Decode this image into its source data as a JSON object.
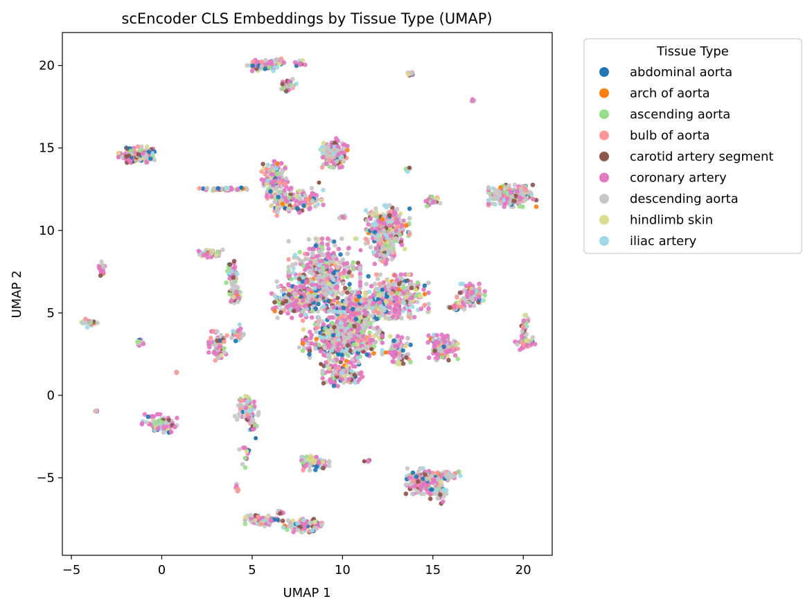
{
  "chart_data": {
    "type": "scatter",
    "title": "scEncoder CLS Embeddings by Tissue Type (UMAP)",
    "xlabel": "UMAP 1",
    "ylabel": "UMAP 2",
    "xlim": [
      -5.5,
      21.6
    ],
    "ylim": [
      -9.7,
      22.0
    ],
    "xticks": [
      -5,
      0,
      5,
      10,
      15,
      20
    ],
    "yticks": [
      -5,
      0,
      5,
      10,
      15,
      20
    ],
    "xtick_labels": [
      "−5",
      "0",
      "5",
      "10",
      "15",
      "20"
    ],
    "ytick_labels": [
      "−5",
      "0",
      "5",
      "10",
      "15",
      "20"
    ],
    "grid": false,
    "legend": {
      "title": "Tissue Type",
      "placement": "outside-upper-right"
    },
    "series": [
      {
        "name": "abdominal aorta",
        "color": "#1f77b4"
      },
      {
        "name": "arch of aorta",
        "color": "#ff7f0e"
      },
      {
        "name": "ascending aorta",
        "color": "#98df8a"
      },
      {
        "name": "bulb of aorta",
        "color": "#ff9896"
      },
      {
        "name": "carotid artery segment",
        "color": "#8c564b"
      },
      {
        "name": "coronary artery",
        "color": "#e377c2"
      },
      {
        "name": "descending aorta",
        "color": "#c7c7c7"
      },
      {
        "name": "hindlimb skin",
        "color": "#dbdb8d"
      },
      {
        "name": "iliac artery",
        "color": "#9edae5"
      }
    ],
    "clusters": [
      {
        "x": -1.4,
        "y": 14.6,
        "sx": 0.45,
        "sy": 0.22,
        "n": 160
      },
      {
        "x": 5.6,
        "y": 20.0,
        "sx": 0.4,
        "sy": 0.15,
        "n": 70
      },
      {
        "x": 6.4,
        "y": 20.2,
        "sx": 0.25,
        "sy": 0.1,
        "n": 30
      },
      {
        "x": 7.0,
        "y": 18.8,
        "sx": 0.2,
        "sy": 0.22,
        "n": 30
      },
      {
        "x": 7.6,
        "y": 20.1,
        "sx": 0.15,
        "sy": 0.1,
        "n": 15
      },
      {
        "x": 13.8,
        "y": 19.5,
        "sx": 0.08,
        "sy": 0.06,
        "n": 15
      },
      {
        "x": 17.2,
        "y": 17.9,
        "sx": 0.04,
        "sy": 0.04,
        "n": 6
      },
      {
        "x": 9.5,
        "y": 14.7,
        "sx": 0.35,
        "sy": 0.4,
        "n": 140
      },
      {
        "x": 6.3,
        "y": 13.2,
        "sx": 0.35,
        "sy": 0.45,
        "n": 100
      },
      {
        "x": 7.5,
        "y": 11.8,
        "sx": 0.65,
        "sy": 0.35,
        "n": 120
      },
      {
        "x": 6.4,
        "y": 12.0,
        "sx": 0.3,
        "sy": 0.5,
        "n": 60
      },
      {
        "x": 3.4,
        "y": 12.5,
        "sx": 0.6,
        "sy": 0.04,
        "n": 50
      },
      {
        "x": 12.5,
        "y": 10.2,
        "sx": 0.55,
        "sy": 0.6,
        "n": 300
      },
      {
        "x": 12.2,
        "y": 8.6,
        "sx": 0.3,
        "sy": 0.3,
        "n": 60
      },
      {
        "x": 13.6,
        "y": 13.7,
        "sx": 0.08,
        "sy": 0.06,
        "n": 8
      },
      {
        "x": 15.0,
        "y": 11.8,
        "sx": 0.18,
        "sy": 0.18,
        "n": 25
      },
      {
        "x": 19.4,
        "y": 12.1,
        "sx": 0.6,
        "sy": 0.3,
        "n": 220
      },
      {
        "x": 10.0,
        "y": 10.8,
        "sx": 0.08,
        "sy": 0.05,
        "n": 8
      },
      {
        "x": 2.6,
        "y": 8.6,
        "sx": 0.35,
        "sy": 0.15,
        "n": 40
      },
      {
        "x": -3.3,
        "y": 7.7,
        "sx": 0.1,
        "sy": 0.2,
        "n": 20
      },
      {
        "x": 3.9,
        "y": 7.3,
        "sx": 0.15,
        "sy": 0.4,
        "n": 45
      },
      {
        "x": 4.1,
        "y": 6.1,
        "sx": 0.15,
        "sy": 0.25,
        "n": 30
      },
      {
        "x": 9.0,
        "y": 7.3,
        "sx": 0.9,
        "sy": 1.0,
        "n": 450
      },
      {
        "x": 7.4,
        "y": 5.8,
        "sx": 0.6,
        "sy": 0.5,
        "n": 200
      },
      {
        "x": 10.8,
        "y": 5.2,
        "sx": 0.8,
        "sy": 0.5,
        "n": 220
      },
      {
        "x": 13.0,
        "y": 6.0,
        "sx": 0.8,
        "sy": 0.6,
        "n": 280
      },
      {
        "x": 10.0,
        "y": 3.4,
        "sx": 1.0,
        "sy": 0.6,
        "n": 450
      },
      {
        "x": 10.0,
        "y": 1.3,
        "sx": 0.5,
        "sy": 0.4,
        "n": 130
      },
      {
        "x": 13.1,
        "y": 2.7,
        "sx": 0.3,
        "sy": 0.4,
        "n": 80
      },
      {
        "x": 15.5,
        "y": 2.9,
        "sx": 0.4,
        "sy": 0.35,
        "n": 140
      },
      {
        "x": 17.1,
        "y": 6.1,
        "sx": 0.35,
        "sy": 0.3,
        "n": 90
      },
      {
        "x": 16.3,
        "y": 5.4,
        "sx": 0.2,
        "sy": 0.1,
        "n": 25
      },
      {
        "x": 20.1,
        "y": 4.2,
        "sx": 0.1,
        "sy": 0.3,
        "n": 25
      },
      {
        "x": 20.1,
        "y": 3.2,
        "sx": 0.25,
        "sy": 0.2,
        "n": 40
      },
      {
        "x": -4.0,
        "y": 4.4,
        "sx": 0.2,
        "sy": 0.12,
        "n": 20
      },
      {
        "x": -1.2,
        "y": 3.2,
        "sx": 0.12,
        "sy": 0.08,
        "n": 15
      },
      {
        "x": 3.1,
        "y": 3.0,
        "sx": 0.25,
        "sy": 0.4,
        "n": 70
      },
      {
        "x": 4.2,
        "y": 3.7,
        "sx": 0.15,
        "sy": 0.2,
        "n": 30
      },
      {
        "x": 0.8,
        "y": 1.4,
        "sx": 0.04,
        "sy": 0.04,
        "n": 5
      },
      {
        "x": -3.6,
        "y": -0.9,
        "sx": 0.04,
        "sy": 0.04,
        "n": 5
      },
      {
        "x": 0.0,
        "y": -1.7,
        "sx": 0.5,
        "sy": 0.25,
        "n": 70
      },
      {
        "x": 4.7,
        "y": -0.7,
        "sx": 0.3,
        "sy": 0.35,
        "n": 70
      },
      {
        "x": 5.0,
        "y": -1.5,
        "sx": 0.15,
        "sy": 0.3,
        "n": 25
      },
      {
        "x": 4.6,
        "y": -3.5,
        "sx": 0.15,
        "sy": 0.4,
        "n": 12
      },
      {
        "x": 4.2,
        "y": -5.6,
        "sx": 0.05,
        "sy": 0.15,
        "n": 8
      },
      {
        "x": 8.5,
        "y": -4.1,
        "sx": 0.35,
        "sy": 0.2,
        "n": 80
      },
      {
        "x": 11.4,
        "y": -4.0,
        "sx": 0.05,
        "sy": 0.04,
        "n": 5
      },
      {
        "x": 14.5,
        "y": -5.2,
        "sx": 0.45,
        "sy": 0.35,
        "n": 150
      },
      {
        "x": 15.8,
        "y": -4.9,
        "sx": 0.5,
        "sy": 0.12,
        "n": 50
      },
      {
        "x": 15.3,
        "y": -5.9,
        "sx": 0.2,
        "sy": 0.3,
        "n": 40
      },
      {
        "x": 5.6,
        "y": -7.6,
        "sx": 0.45,
        "sy": 0.15,
        "n": 80
      },
      {
        "x": 6.6,
        "y": -7.1,
        "sx": 0.1,
        "sy": 0.08,
        "n": 10
      },
      {
        "x": 7.9,
        "y": -7.9,
        "sx": 0.55,
        "sy": 0.18,
        "n": 100
      }
    ],
    "stray_points": [
      {
        "x": 4.4,
        "y": 12.6,
        "series": "abdominal aorta"
      },
      {
        "x": 8.7,
        "y": 12.9,
        "series": "carotid artery segment"
      },
      {
        "x": 13.7,
        "y": 13.8,
        "series": "carotid artery segment"
      },
      {
        "x": 11.0,
        "y": 8.8,
        "series": "coronary artery"
      },
      {
        "x": 9.5,
        "y": 7.0,
        "series": "iliac artery"
      },
      {
        "x": 12.2,
        "y": 6.4,
        "series": "abdominal aorta"
      },
      {
        "x": 12.0,
        "y": 5.0,
        "series": "bulb of aorta"
      },
      {
        "x": 10.5,
        "y": 4.0,
        "series": "coronary artery"
      },
      {
        "x": 11.6,
        "y": 2.8,
        "series": "carotid artery segment"
      },
      {
        "x": 12.4,
        "y": 2.6,
        "series": "arch of aorta"
      },
      {
        "x": 7.6,
        "y": 2.9,
        "series": "descending aorta"
      },
      {
        "x": 8.8,
        "y": 1.9,
        "series": "carotid artery segment"
      },
      {
        "x": 4.3,
        "y": 4.3,
        "series": "iliac artery"
      },
      {
        "x": 5.2,
        "y": -2.6,
        "series": "abdominal aorta"
      },
      {
        "x": 4.6,
        "y": -3.8,
        "series": "ascending aorta"
      },
      {
        "x": 11.2,
        "y": -4.0,
        "series": "carotid artery segment"
      },
      {
        "x": 6.5,
        "y": 20.1,
        "series": "hindlimb skin"
      },
      {
        "x": 3.0,
        "y": 8.5,
        "series": "hindlimb skin"
      }
    ]
  }
}
